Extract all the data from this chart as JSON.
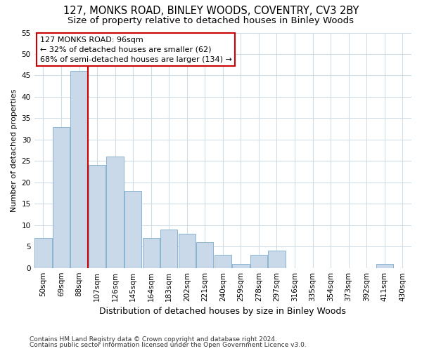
{
  "title": "127, MONKS ROAD, BINLEY WOODS, COVENTRY, CV3 2BY",
  "subtitle": "Size of property relative to detached houses in Binley Woods",
  "xlabel": "Distribution of detached houses by size in Binley Woods",
  "ylabel": "Number of detached properties",
  "footnote1": "Contains HM Land Registry data © Crown copyright and database right 2024.",
  "footnote2": "Contains public sector information licensed under the Open Government Licence v3.0.",
  "annotation_title": "127 MONKS ROAD: 96sqm",
  "annotation_line1": "← 32% of detached houses are smaller (62)",
  "annotation_line2": "68% of semi-detached houses are larger (134) →",
  "bar_labels": [
    "50sqm",
    "69sqm",
    "88sqm",
    "107sqm",
    "126sqm",
    "145sqm",
    "164sqm",
    "183sqm",
    "202sqm",
    "221sqm",
    "240sqm",
    "259sqm",
    "278sqm",
    "297sqm",
    "316sqm",
    "335sqm",
    "354sqm",
    "373sqm",
    "392sqm",
    "411sqm",
    "430sqm"
  ],
  "bar_values": [
    7,
    33,
    46,
    24,
    26,
    18,
    7,
    9,
    8,
    6,
    3,
    1,
    3,
    4,
    0,
    0,
    0,
    0,
    0,
    1,
    0
  ],
  "bar_color": "#c9d9ea",
  "bar_edgecolor": "#8ab4d0",
  "vline_color": "#cc0000",
  "vline_x_index": 2,
  "ylim": [
    0,
    55
  ],
  "yticks": [
    0,
    5,
    10,
    15,
    20,
    25,
    30,
    35,
    40,
    45,
    50,
    55
  ],
  "annotation_box_edgecolor": "#cc0000",
  "bg_color": "#ffffff",
  "fig_bg_color": "#ffffff",
  "grid_color": "#d0dce8",
  "title_fontsize": 10.5,
  "subtitle_fontsize": 9.5,
  "ylabel_fontsize": 8,
  "xlabel_fontsize": 9,
  "tick_fontsize": 7.5,
  "annotation_fontsize": 8,
  "footnote_fontsize": 6.5
}
